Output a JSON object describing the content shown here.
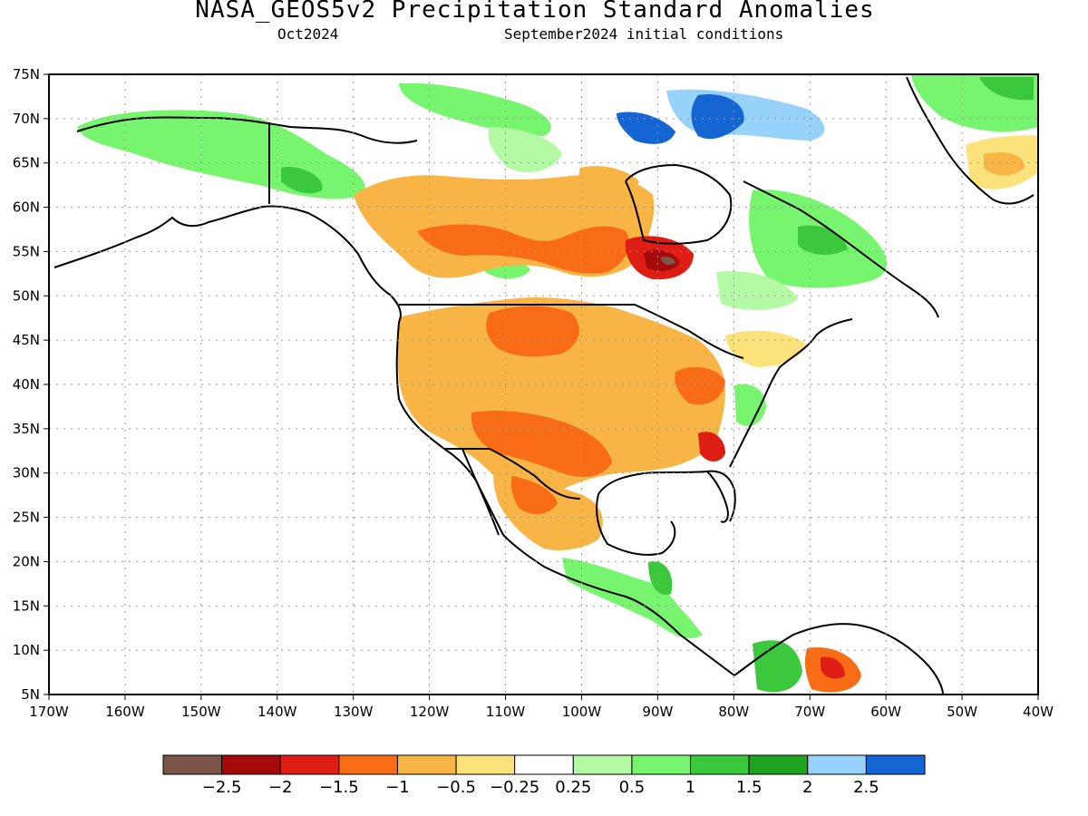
{
  "header": {
    "title": "NASA_GEOS5v2 Precipitation Standard Anomalies",
    "month": "Oct2024",
    "init": "September2024 initial conditions"
  },
  "map": {
    "lat_labels": [
      "75N",
      "70N",
      "65N",
      "60N",
      "55N",
      "50N",
      "45N",
      "40N",
      "35N",
      "30N",
      "25N",
      "20N",
      "15N",
      "10N",
      "5N"
    ],
    "lon_labels": [
      "170W",
      "160W",
      "150W",
      "140W",
      "130W",
      "120W",
      "110W",
      "100W",
      "90W",
      "80W",
      "70W",
      "60W",
      "50W",
      "40W"
    ],
    "lon_range": [
      -170,
      -40
    ],
    "lat_range": [
      5,
      75
    ]
  },
  "colorbar": {
    "colors": [
      "#7a5548",
      "#a50a0a",
      "#de1e14",
      "#f86c16",
      "#f9b446",
      "#fce27a",
      "#ffffff",
      "#b4f9a4",
      "#78f56e",
      "#3cc83c",
      "#1fa31f",
      "#96d2fa",
      "#1464d2"
    ],
    "labels": [
      "-2.5",
      "-2",
      "-1.5",
      "-1",
      "-0.5",
      "-0.25",
      "0.25",
      "0.5",
      "1",
      "1.5",
      "2",
      "2.5"
    ]
  },
  "palette": {
    "dry_extreme": "#7a5548",
    "dry_2": "#a50a0a",
    "dry_15": "#de1e14",
    "dry_1": "#f86c16",
    "dry_05": "#f9b446",
    "dry_025": "#fce27a",
    "wet_025": "#b4f9a4",
    "wet_05": "#78f56e",
    "wet_1": "#3cc83c",
    "wet_15": "#1fa31f",
    "wet_2": "#96d2fa",
    "wet_25": "#1464d2"
  }
}
